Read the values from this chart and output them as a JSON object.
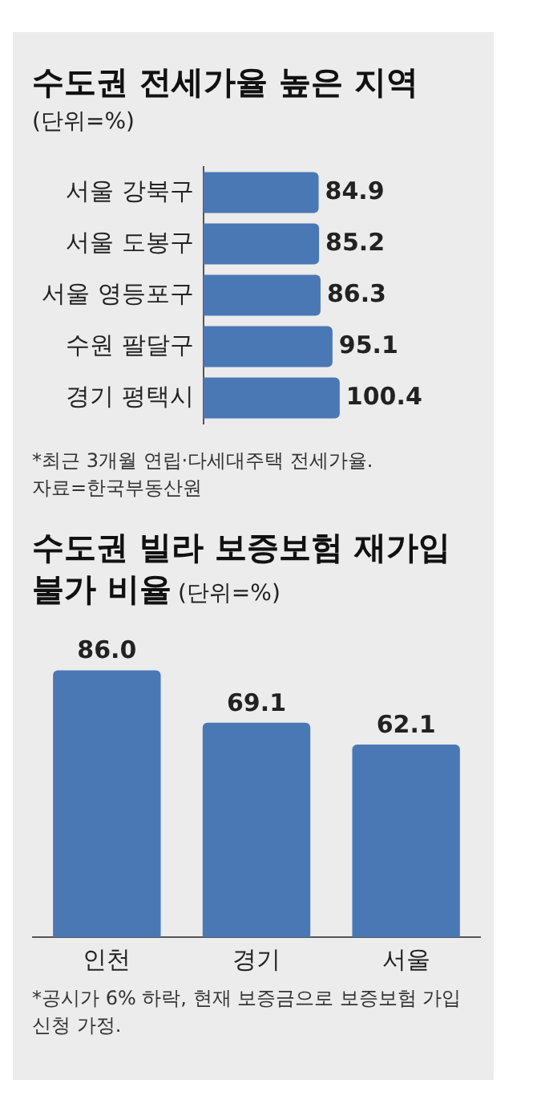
{
  "chart_data": [
    {
      "type": "bar",
      "title": "수도권 전세가율 높은 지역",
      "subtitle": "(단위=%)",
      "orientation": "horizontal",
      "categories": [
        "서울 강북구",
        "서울 도봉구",
        "서울 영등포구",
        "수원 팔달구",
        "경기 평택시"
      ],
      "values": [
        84.9,
        85.2,
        86.3,
        95.1,
        100.4
      ],
      "value_labels": [
        "84.9",
        "85.2",
        "86.3",
        "95.1",
        "100.4"
      ],
      "color": "#4a78b5",
      "annotations": [
        "*최근 3개월 연립·다세대주택 전세가율.",
        "자료=한국부동산원"
      ]
    },
    {
      "type": "bar",
      "title": "수도권 빌라 보증보험 재가입 불가 비율",
      "subtitle": "(단위=%)",
      "categories": [
        "인천",
        "경기",
        "서울"
      ],
      "values": [
        86.0,
        69.1,
        62.1
      ],
      "value_labels": [
        "86.0",
        "69.1",
        "62.1"
      ],
      "color": "#4a78b5",
      "annotations": [
        "*공시가 6% 하락, 현재 보증금으로 보증보험 가입 신청 가정."
      ]
    }
  ]
}
